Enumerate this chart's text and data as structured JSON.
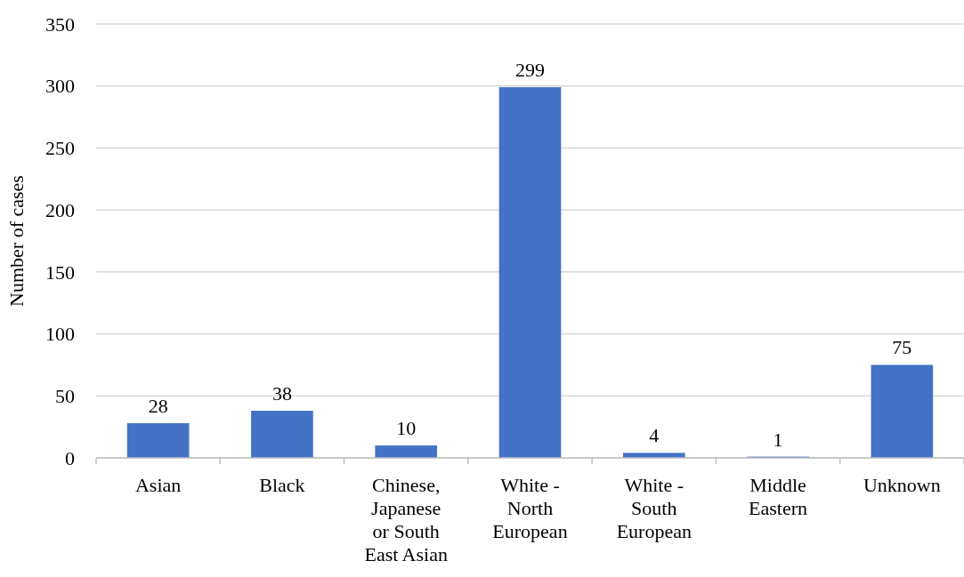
{
  "chart_data": {
    "type": "bar",
    "ylabel": "Number of cases",
    "categories": [
      "Asian",
      "Black",
      "Chinese, Japanese or South East Asian",
      "White - North European",
      "White - South European",
      "Middle Eastern",
      "Unknown"
    ],
    "values": [
      28,
      38,
      10,
      299,
      4,
      1,
      75
    ],
    "color": "#4472c4",
    "ylim": [
      0,
      350
    ],
    "yticks": [
      0,
      50,
      100,
      150,
      200,
      250,
      300,
      350
    ],
    "grid": "y",
    "data_labels": true
  }
}
